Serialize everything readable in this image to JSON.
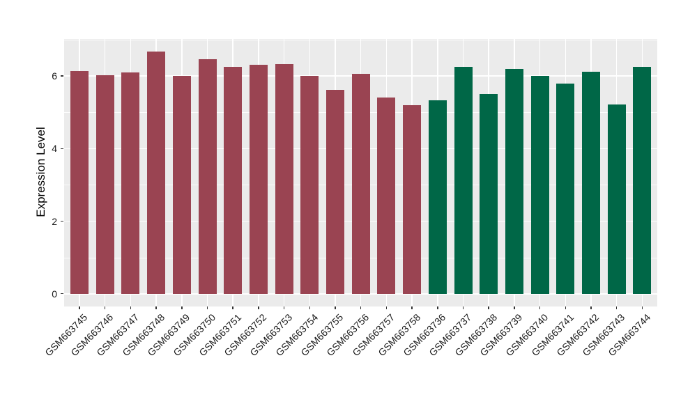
{
  "chart_data": {
    "type": "bar",
    "title": "",
    "ylabel": "Expression Level",
    "xlabel": "",
    "ylim": [
      0,
      7
    ],
    "yticks": [
      0,
      2,
      4,
      6
    ],
    "yticks_minor": [
      1,
      3,
      5,
      7
    ],
    "grid": "on",
    "legend": "none",
    "panel_bg": "#EBEBEB",
    "grid_color": "#FFFFFF",
    "axis_text_color": "#1A1A1A",
    "tick_mark_color": "#333333",
    "categories": [
      "GSM663745",
      "GSM663746",
      "GSM663747",
      "GSM663748",
      "GSM663749",
      "GSM663750",
      "GSM663751",
      "GSM663752",
      "GSM663753",
      "GSM663754",
      "GSM663755",
      "GSM663756",
      "GSM663757",
      "GSM663758",
      "GSM663736",
      "GSM663737",
      "GSM663738",
      "GSM663739",
      "GSM663740",
      "GSM663741",
      "GSM663742",
      "GSM663743",
      "GSM663744"
    ],
    "values": [
      6.14,
      6.02,
      6.1,
      6.67,
      6.0,
      6.46,
      6.26,
      6.32,
      6.33,
      6.0,
      5.63,
      6.06,
      5.41,
      5.2,
      5.33,
      6.25,
      5.51,
      6.19,
      6.01,
      5.8,
      6.12,
      5.22,
      6.26
    ],
    "bar_groups": [
      0,
      0,
      0,
      0,
      0,
      0,
      0,
      0,
      0,
      0,
      0,
      0,
      0,
      0,
      1,
      1,
      1,
      1,
      1,
      1,
      1,
      1,
      1
    ],
    "group_colors": [
      "#9A4452",
      "#006747"
    ]
  }
}
